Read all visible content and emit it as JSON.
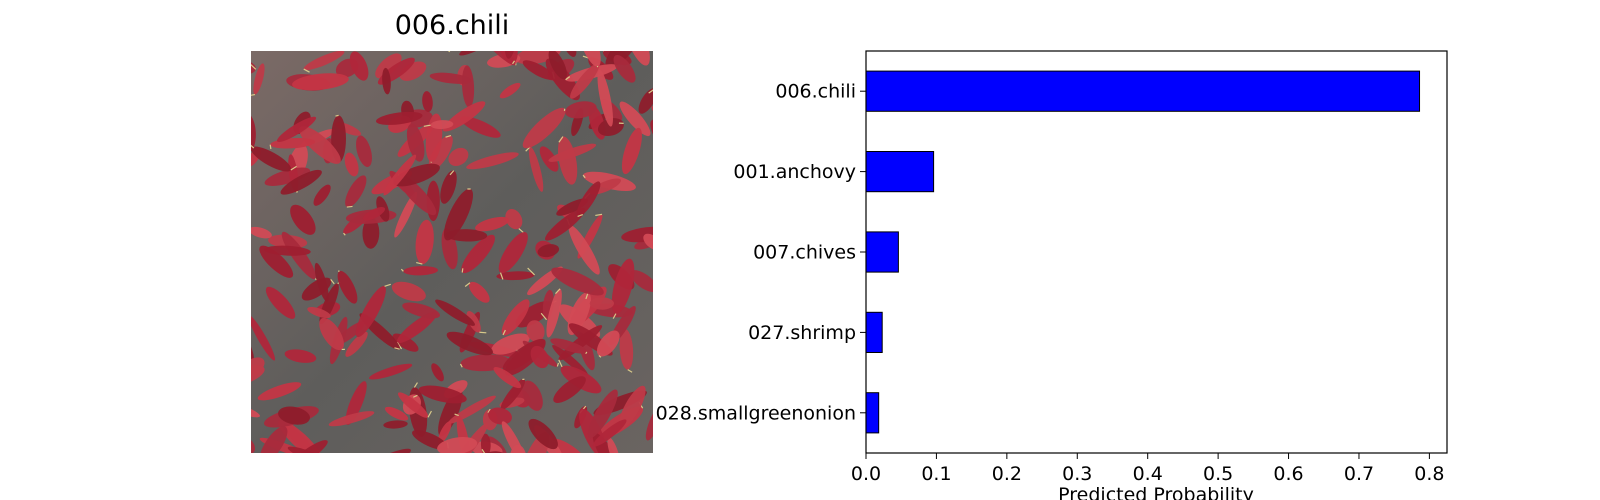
{
  "image_panel": {
    "title": "006.chili",
    "photo_description_icon": "dried-red-chilies-photo"
  },
  "chart_data": {
    "type": "bar",
    "orientation": "horizontal",
    "categories": [
      "006.chili",
      "001.anchovy",
      "007.chives",
      "027.shrimp",
      "028.smallgreenonion"
    ],
    "values": [
      0.786,
      0.096,
      0.046,
      0.023,
      0.018
    ],
    "title": "",
    "xlabel": "Predicted Probability",
    "ylabel": "",
    "xlim": [
      0,
      0.825
    ],
    "xticks": [
      "0.0",
      "0.1",
      "0.2",
      "0.3",
      "0.4",
      "0.5",
      "0.6",
      "0.7",
      "0.8"
    ],
    "grid": false,
    "bar_color": "#0000ff",
    "edge_color": "#000000"
  }
}
